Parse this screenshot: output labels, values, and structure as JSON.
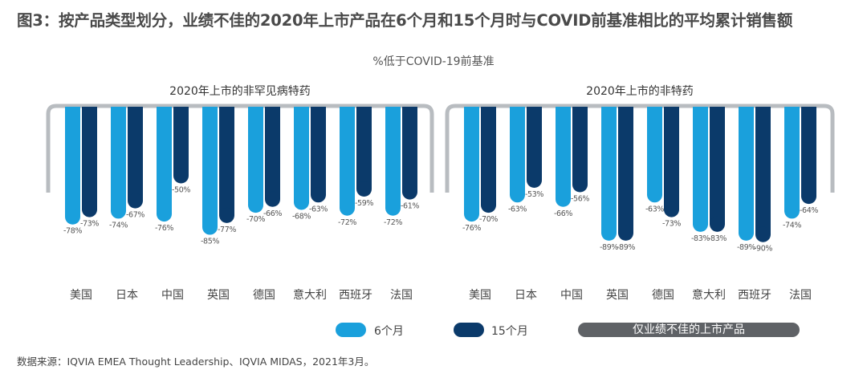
{
  "title": "图3：按产品类型划分，业绩不佳的2020年上市产品在6个月和15个月时与COVID前基准相比的平均累计销售额",
  "subtitle": "%低于COVID-19前基准",
  "source": "数据来源：IQVIA EMEA Thought Leadership、IQVIA MIDAS，2021年3月。",
  "legend": {
    "m6_label": "6个月",
    "m15_label": "15个月",
    "badge_label": "仅业绩不佳的上市产品"
  },
  "colors": {
    "m6": "#1aa0dc",
    "m15": "#0b3a6a",
    "frame": "#b8bcc0",
    "badge": "#5f6266"
  },
  "chart_data": [
    {
      "type": "bar",
      "title": "2020年上市的非罕见病特药",
      "categories": [
        "美国",
        "日本",
        "中国",
        "英国",
        "德国",
        "意大利",
        "西班牙",
        "法国"
      ],
      "series": [
        {
          "name": "6个月",
          "values": [
            -78,
            -74,
            -76,
            -85,
            -70,
            -68,
            -72,
            -72
          ]
        },
        {
          "name": "15个月",
          "values": [
            -73,
            -67,
            -50,
            -77,
            -66,
            -63,
            -59,
            -61
          ]
        }
      ],
      "ylim": [
        -100,
        0
      ]
    },
    {
      "type": "bar",
      "title": "2020年上市的非特药",
      "categories": [
        "美国",
        "日本",
        "中国",
        "英国",
        "德国",
        "意大利",
        "西班牙",
        "法国"
      ],
      "series": [
        {
          "name": "6个月",
          "values": [
            -76,
            -63,
            -66,
            -89,
            -63,
            -83,
            -89,
            -74
          ]
        },
        {
          "name": "15个月",
          "values": [
            -70,
            -53,
            -56,
            -89,
            -73,
            -83,
            -90,
            -64
          ]
        }
      ],
      "ylim": [
        -100,
        0
      ]
    }
  ]
}
